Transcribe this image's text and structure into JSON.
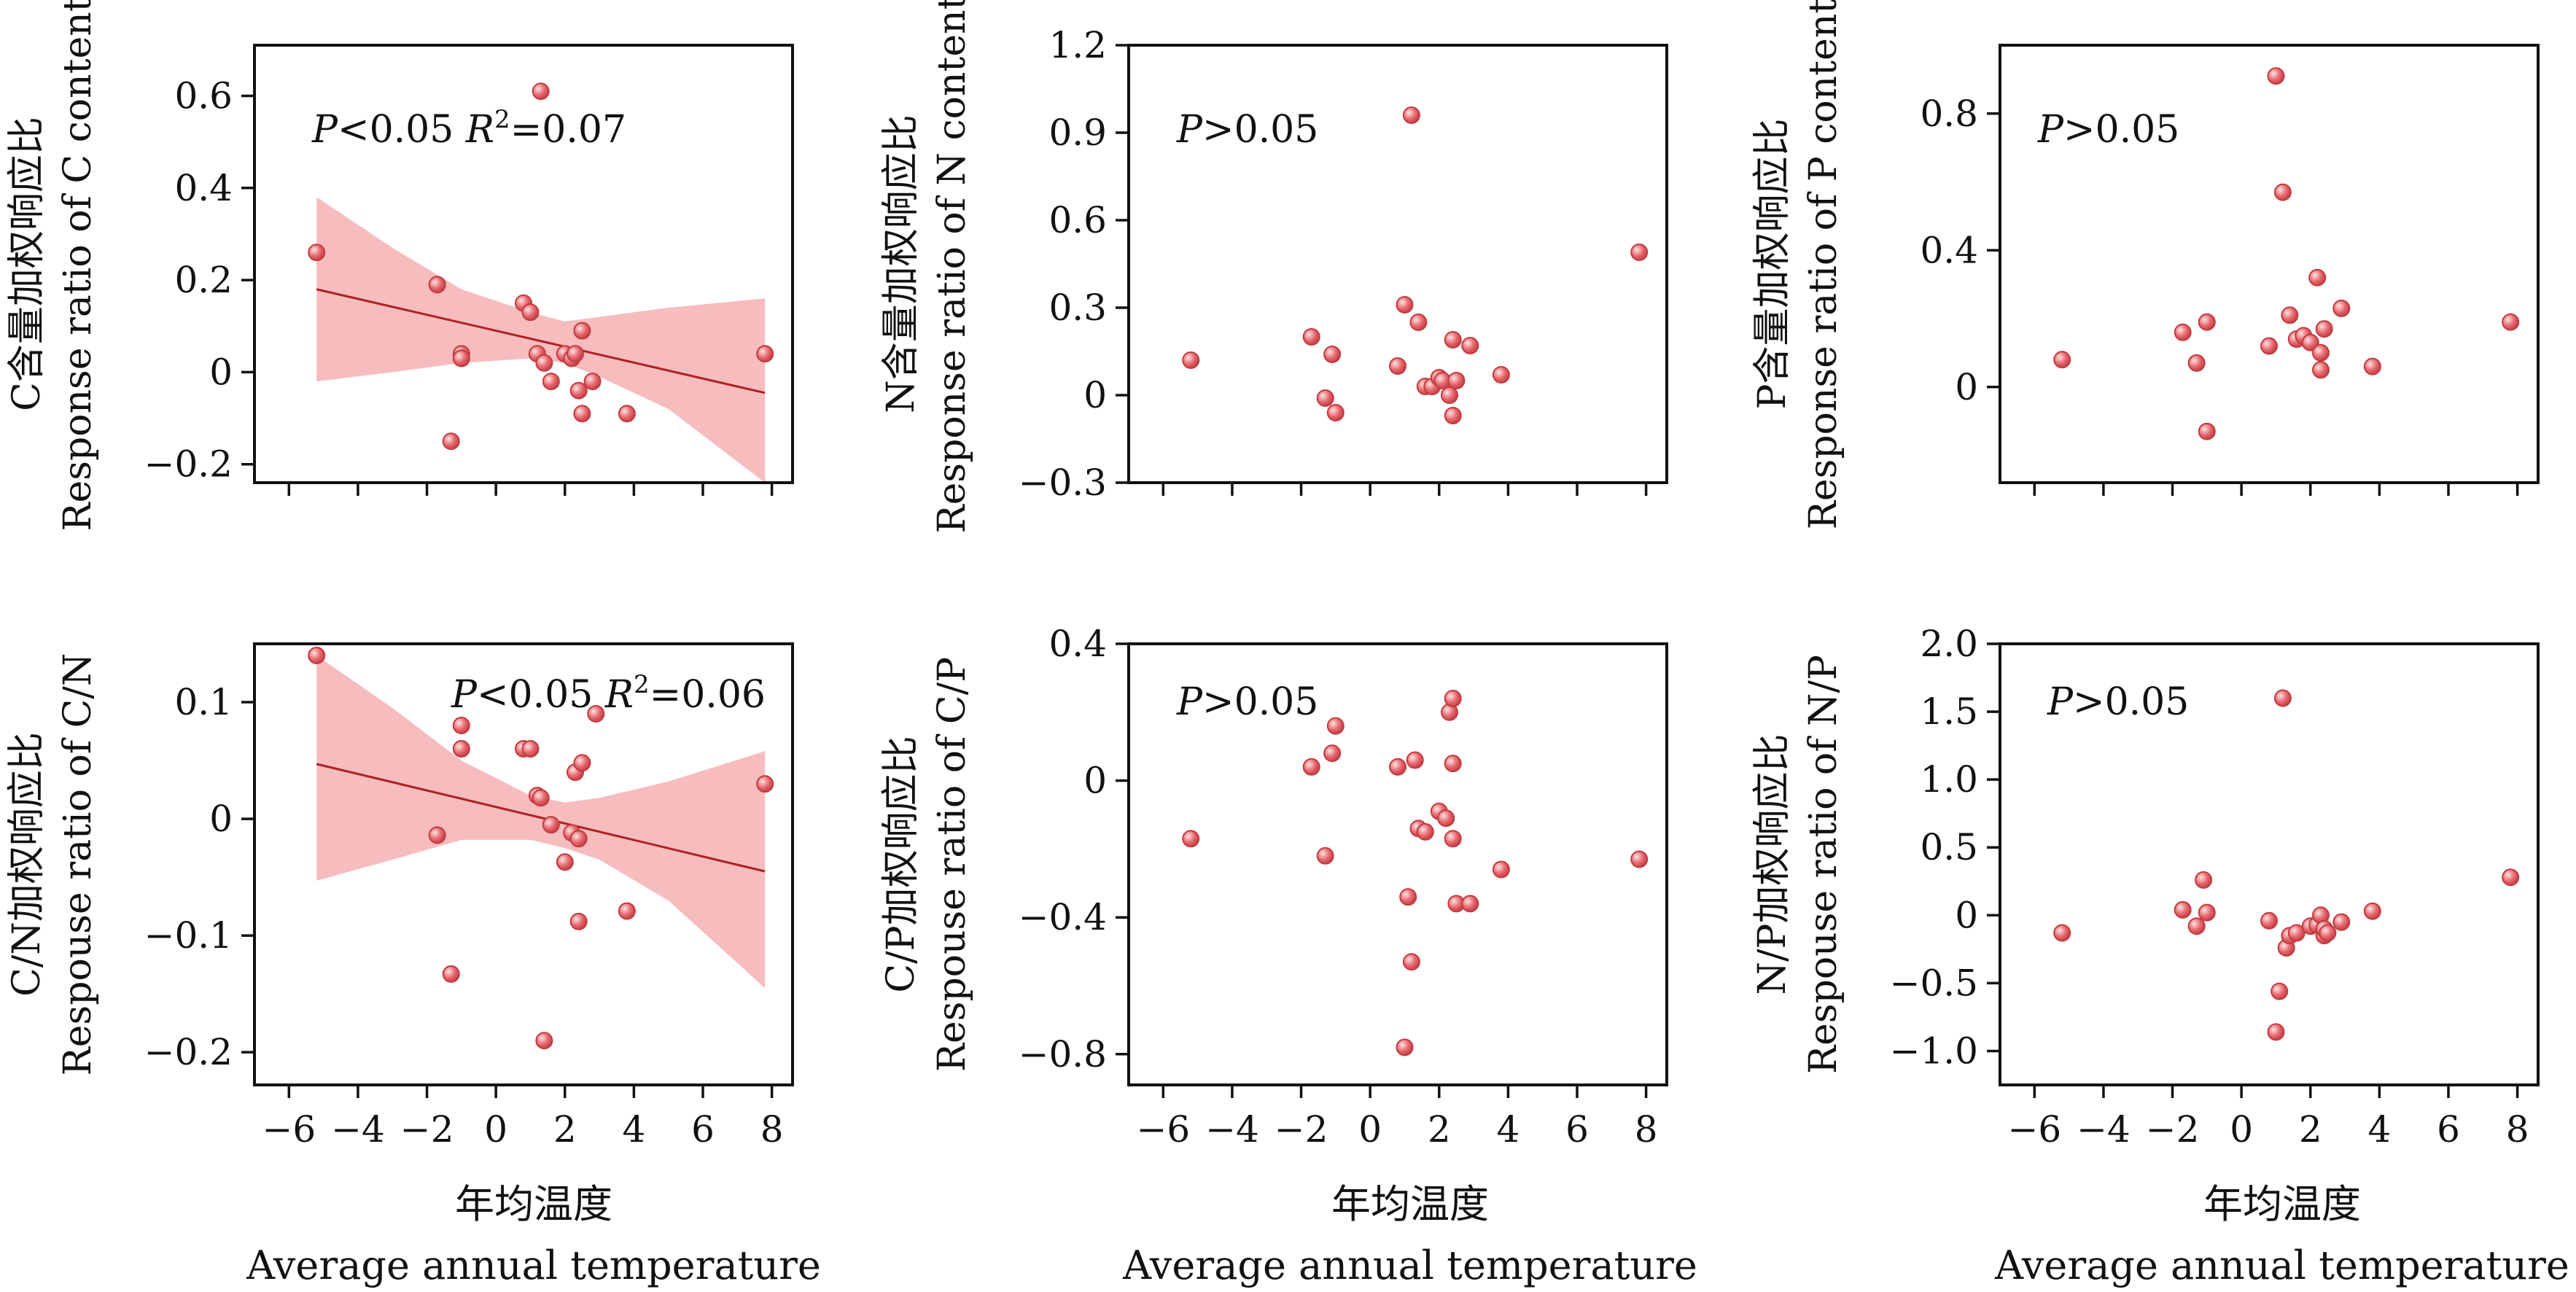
{
  "figure": {
    "x_axis_label_cn": "年均温度",
    "x_axis_label_en": "Average annual temperature"
  },
  "chart_data": [
    {
      "type": "scatter",
      "panel": "c",
      "ylabel_cn": "C含量加权响应比",
      "ylabel_en": "Response ratio of C content",
      "annotation": {
        "p": "P<0.05",
        "r2": "R2=0.07"
      },
      "xlim": [
        -7,
        8.6
      ],
      "ylim": [
        -0.24,
        0.71
      ],
      "xticks": [
        -6,
        -4,
        -2,
        0,
        2,
        4,
        6,
        8
      ],
      "yticks": [
        -0.2,
        0,
        0.2,
        0.4,
        0.6
      ],
      "ytick_labels": [
        "−0.2",
        "0",
        "0.2",
        "0.4",
        "0.6"
      ],
      "x": [
        -5.2,
        -1.7,
        -1.3,
        -1.0,
        -1.0,
        0.8,
        1.0,
        1.2,
        1.3,
        1.4,
        1.6,
        2.0,
        2.2,
        2.3,
        2.4,
        2.5,
        2.5,
        2.8,
        3.8,
        7.8
      ],
      "y": [
        0.26,
        0.19,
        -0.15,
        0.04,
        0.03,
        0.15,
        0.13,
        0.04,
        0.61,
        0.02,
        -0.02,
        0.04,
        0.03,
        0.04,
        -0.04,
        0.09,
        -0.09,
        -0.02,
        -0.09,
        0.04
      ],
      "fit": {
        "x": [
          -5.2,
          7.8
        ],
        "y": [
          0.18,
          -0.045
        ]
      },
      "band": {
        "x": [
          -5.2,
          -3,
          -1,
          1,
          2,
          3,
          5,
          7.8
        ],
        "lower": [
          -0.02,
          0.0,
          0.02,
          0.03,
          0.02,
          -0.01,
          -0.08,
          -0.24
        ],
        "upper": [
          0.38,
          0.27,
          0.18,
          0.13,
          0.11,
          0.12,
          0.14,
          0.16
        ]
      }
    },
    {
      "type": "scatter",
      "panel": "n",
      "ylabel_cn": "N含量加权响应比",
      "ylabel_en": "Response ratio of N content",
      "annotation": {
        "p": "P>0.05"
      },
      "xlim": [
        -7,
        8.6
      ],
      "ylim": [
        -0.3,
        1.2
      ],
      "xticks": [
        -6,
        -4,
        -2,
        0,
        2,
        4,
        6,
        8
      ],
      "yticks": [
        -0.3,
        0,
        0.3,
        0.6,
        0.9,
        1.2
      ],
      "ytick_labels": [
        "−0.3",
        "0",
        "0.3",
        "0.6",
        "0.9",
        "1.2"
      ],
      "x": [
        -5.2,
        -1.7,
        -1.3,
        -1.1,
        -1.0,
        0.8,
        1.0,
        1.2,
        1.4,
        1.6,
        1.8,
        2.0,
        2.1,
        2.3,
        2.4,
        2.4,
        2.5,
        2.9,
        3.8,
        7.8
      ],
      "y": [
        0.12,
        0.2,
        -0.01,
        0.14,
        -0.06,
        0.1,
        0.31,
        0.96,
        0.25,
        0.03,
        0.03,
        0.06,
        0.05,
        0.0,
        0.19,
        -0.07,
        0.05,
        0.17,
        0.07,
        0.49
      ]
    },
    {
      "type": "scatter",
      "panel": "p",
      "ylabel_cn": "P含量加权响应比",
      "ylabel_en": "Response ratio of P content",
      "annotation": {
        "p": "P>0.05"
      },
      "xlim": [
        -7,
        8.6
      ],
      "ylim": [
        -0.28,
        1.0
      ],
      "xticks": [
        -6,
        -4,
        -2,
        0,
        2,
        4,
        6,
        8
      ],
      "yticks": [
        0,
        0.4,
        0.8
      ],
      "ytick_labels": [
        "0",
        "0.4",
        "0.8"
      ],
      "x": [
        -5.2,
        -1.7,
        -1.3,
        -1.0,
        -1.0,
        0.8,
        1.0,
        1.2,
        1.4,
        1.6,
        1.8,
        2.0,
        2.2,
        2.3,
        2.3,
        2.4,
        2.9,
        3.8,
        7.8
      ],
      "y": [
        0.08,
        0.16,
        0.07,
        0.19,
        -0.13,
        0.12,
        0.91,
        0.57,
        0.21,
        0.14,
        0.15,
        0.13,
        0.32,
        0.1,
        0.05,
        0.17,
        0.23,
        0.06,
        0.19
      ]
    },
    {
      "type": "scatter",
      "panel": "cn",
      "ylabel_cn": "C/N加权响应比",
      "ylabel_en": "Respouse ratio of C/N",
      "annotation": {
        "p": "P<0.05",
        "r2": "R2=0.06"
      },
      "xlim": [
        -7,
        8.6
      ],
      "ylim": [
        -0.228,
        0.15
      ],
      "xticks": [
        -6,
        -4,
        -2,
        0,
        2,
        4,
        6,
        8
      ],
      "xtick_labels": [
        "−6",
        "−4",
        "−2",
        "0",
        "2",
        "4",
        "6",
        "8"
      ],
      "yticks": [
        -0.2,
        -0.1,
        0,
        0.1
      ],
      "ytick_labels": [
        "−0.2",
        "−0.1",
        "0",
        "0.1"
      ],
      "x": [
        -5.2,
        -1.7,
        -1.3,
        -1.0,
        -1.0,
        0.8,
        1.0,
        1.2,
        1.3,
        1.4,
        1.6,
        2.0,
        2.2,
        2.3,
        2.4,
        2.4,
        2.5,
        2.9,
        3.8,
        7.8
      ],
      "y": [
        0.14,
        -0.014,
        -0.133,
        0.08,
        0.06,
        0.06,
        0.06,
        0.02,
        0.018,
        -0.19,
        -0.005,
        -0.037,
        -0.012,
        0.04,
        -0.017,
        -0.088,
        0.048,
        0.09,
        -0.079,
        0.03
      ],
      "fit": {
        "x": [
          -5.2,
          7.8
        ],
        "y": [
          0.047,
          -0.045
        ]
      },
      "band": {
        "x": [
          -5.2,
          -3,
          -1,
          1,
          2,
          3,
          5,
          7.8
        ],
        "lower": [
          -0.053,
          -0.035,
          -0.018,
          -0.018,
          -0.025,
          -0.035,
          -0.07,
          -0.145
        ],
        "upper": [
          0.14,
          0.095,
          0.05,
          0.02,
          0.014,
          0.018,
          0.032,
          0.058
        ]
      }
    },
    {
      "type": "scatter",
      "panel": "cp",
      "ylabel_cn": "C/P加权响应比",
      "ylabel_en": "Respouse ratio of C/P",
      "annotation": {
        "p": "P>0.05"
      },
      "xlim": [
        -7,
        8.6
      ],
      "ylim": [
        -0.89,
        0.4
      ],
      "xticks": [
        -6,
        -4,
        -2,
        0,
        2,
        4,
        6,
        8
      ],
      "xtick_labels": [
        "−6",
        "−4",
        "−2",
        "0",
        "2",
        "4",
        "6",
        "8"
      ],
      "yticks": [
        -0.8,
        -0.4,
        0,
        0.4
      ],
      "ytick_labels": [
        "−0.8",
        "−0.4",
        "0",
        "0.4"
      ],
      "x": [
        -5.2,
        -1.7,
        -1.3,
        -1.1,
        -1.0,
        0.8,
        1.0,
        1.1,
        1.2,
        1.3,
        1.4,
        1.6,
        2.0,
        2.2,
        2.3,
        2.4,
        2.4,
        2.4,
        2.5,
        2.9,
        3.8,
        7.8
      ],
      "y": [
        -0.17,
        0.04,
        -0.22,
        0.08,
        0.16,
        0.04,
        -0.78,
        -0.34,
        -0.53,
        0.06,
        -0.14,
        -0.15,
        -0.09,
        -0.11,
        0.2,
        0.24,
        0.05,
        -0.17,
        -0.36,
        -0.36,
        -0.26,
        -0.23
      ]
    },
    {
      "type": "scatter",
      "panel": "np",
      "ylabel_cn": "N/P加权响应比",
      "ylabel_en": "Respouse ratio of N/P",
      "annotation": {
        "p": "P>0.05"
      },
      "xlim": [
        -7,
        8.6
      ],
      "ylim": [
        -1.25,
        2.0
      ],
      "xticks": [
        -6,
        -4,
        -2,
        0,
        2,
        4,
        6,
        8
      ],
      "xtick_labels": [
        "−6",
        "−4",
        "−2",
        "0",
        "2",
        "4",
        "6",
        "8"
      ],
      "yticks": [
        -1.0,
        -0.5,
        0,
        0.5,
        1.0,
        1.5,
        2.0
      ],
      "ytick_labels": [
        "−1.0",
        "−0.5",
        "0",
        "0.5",
        "1.0",
        "1.5",
        "2.0"
      ],
      "x": [
        -5.2,
        -1.7,
        -1.3,
        -1.1,
        -1.0,
        0.8,
        1.0,
        1.1,
        1.2,
        1.3,
        1.4,
        1.6,
        2.0,
        2.2,
        2.3,
        2.4,
        2.4,
        2.5,
        2.9,
        3.8,
        7.8
      ],
      "y": [
        -0.13,
        0.04,
        -0.08,
        0.26,
        0.02,
        -0.04,
        -0.86,
        -0.56,
        1.6,
        -0.24,
        -0.15,
        -0.13,
        -0.08,
        -0.07,
        0.0,
        -0.15,
        -0.1,
        -0.13,
        -0.05,
        0.03,
        0.28
      ]
    }
  ]
}
